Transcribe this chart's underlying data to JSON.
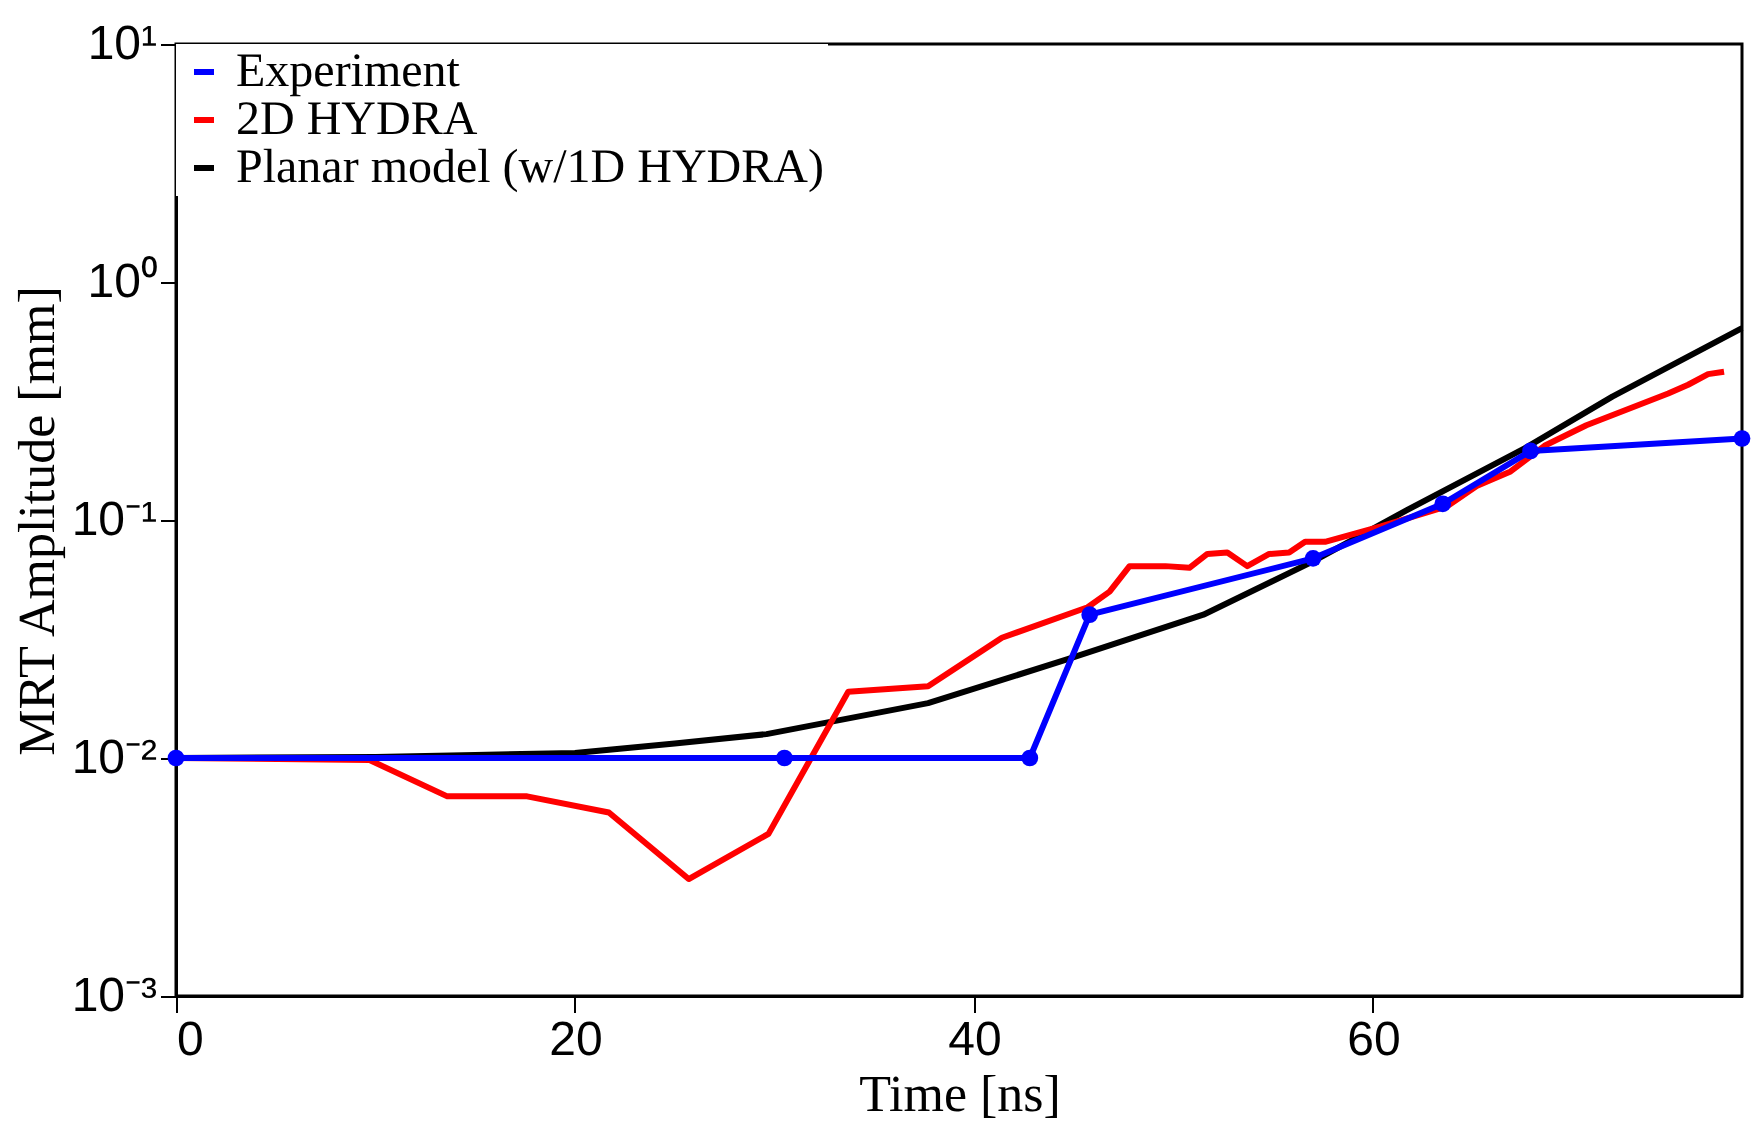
{
  "chart_data": {
    "type": "line",
    "xlabel": "Time [ns]",
    "ylabel": "MRT Amplitude [mm]",
    "log": "y",
    "grid": false,
    "legend": "top left",
    "xlim": [
      0,
      78.5
    ],
    "xticks": [
      0,
      20,
      40,
      60
    ],
    "ylim": [
      0.001,
      10
    ],
    "yticks": [
      {
        "value": 0.001,
        "label": "10⁻³"
      },
      {
        "value": 0.01,
        "label": "10⁻²"
      },
      {
        "value": 0.1,
        "label": "10⁻¹"
      },
      {
        "value": 1,
        "label": "10⁰"
      },
      {
        "value": 10,
        "label": "10¹"
      }
    ],
    "series": [
      {
        "name": "Experiment",
        "color": "#0000ff",
        "marker": "circle",
        "x": [
          0,
          30.5,
          42.8,
          45.8,
          57,
          63.5,
          67.9,
          78.5
        ],
        "values": [
          0.01,
          0.01,
          0.01,
          0.04,
          0.069,
          0.117,
          0.195,
          0.22
        ]
      },
      {
        "name": "2D HYDRA",
        "color": "#ff0000",
        "marker": "none",
        "x": [
          0,
          9.7,
          13.6,
          17.6,
          21.7,
          25.7,
          29.7,
          33.7,
          37.7,
          41.4,
          45.7,
          46.8,
          47.8,
          49.6,
          50.8,
          51.7,
          52.7,
          53.7,
          54.8,
          55.8,
          56.6,
          57.6,
          60.4,
          63.7,
          65.2,
          66.9,
          68.6,
          70.7,
          74.8,
          75.8,
          76.8,
          77.6
        ],
        "values": [
          0.01,
          0.0098,
          0.0069,
          0.0069,
          0.0059,
          0.0031,
          0.0048,
          0.019,
          0.02,
          0.032,
          0.043,
          0.05,
          0.064,
          0.064,
          0.063,
          0.072,
          0.073,
          0.064,
          0.072,
          0.073,
          0.081,
          0.081,
          0.094,
          0.114,
          0.139,
          0.16,
          0.205,
          0.25,
          0.34,
          0.37,
          0.41,
          0.42
        ]
      },
      {
        "name": "Planar model (w/1D HYDRA)",
        "color": "#000000",
        "marker": "none",
        "x": [
          0,
          10,
          15,
          20,
          25,
          29.6,
          37.7,
          44.7,
          51.5,
          57,
          61.7,
          67.6,
          72,
          78.5
        ],
        "values": [
          0.01,
          0.0101,
          0.0103,
          0.0105,
          0.0115,
          0.0126,
          0.017,
          0.026,
          0.04,
          0.067,
          0.11,
          0.2,
          0.33,
          0.64
        ]
      }
    ]
  }
}
